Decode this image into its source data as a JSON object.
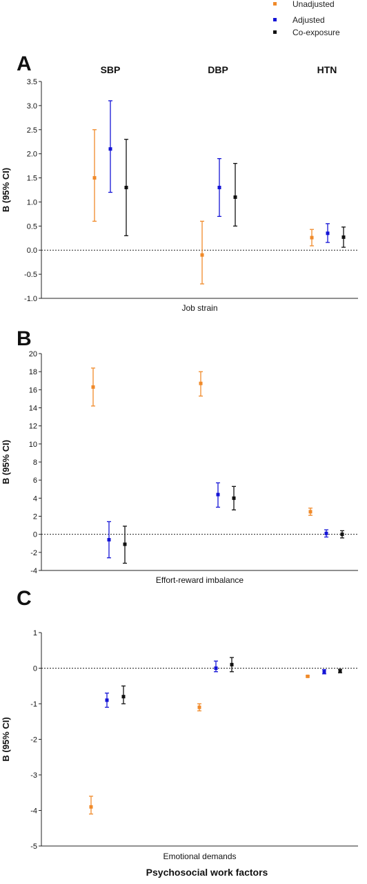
{
  "legend": [
    {
      "name": "Unadjusted",
      "color": "#f08a2a"
    },
    {
      "name": "Adjusted",
      "color": "#1414d6"
    },
    {
      "name": "Co-exposure",
      "color": "#111111"
    }
  ],
  "footer_label": "Psychosocial work factors",
  "chart_data": [
    {
      "type": "scatter",
      "panel": "A",
      "column_labels": [
        "SBP",
        "DBP",
        "HTN"
      ],
      "xlabel": "Job strain",
      "ylabel": "B (95% CI)",
      "ylim": [
        -1.0,
        3.5
      ],
      "yticks": [
        "-1.0",
        "-0.5",
        "0.0",
        "0.5",
        "1.0",
        "1.5",
        "2.0",
        "2.5",
        "3.0",
        "3.5"
      ],
      "reference_line": 0,
      "series": [
        {
          "name": "Unadjusted",
          "values": [
            1.5,
            -0.1,
            0.26
          ],
          "lower": [
            0.6,
            -0.7,
            0.09
          ],
          "upper": [
            2.5,
            0.6,
            0.43
          ]
        },
        {
          "name": "Adjusted",
          "values": [
            2.1,
            1.3,
            0.35
          ],
          "lower": [
            1.2,
            0.7,
            0.16
          ],
          "upper": [
            3.1,
            1.9,
            0.55
          ]
        },
        {
          "name": "Co-exposure",
          "values": [
            1.3,
            1.1,
            0.27
          ],
          "lower": [
            0.3,
            0.5,
            0.06
          ],
          "upper": [
            2.3,
            1.8,
            0.48
          ]
        }
      ]
    },
    {
      "type": "scatter",
      "panel": "B",
      "column_labels": [],
      "xlabel": "Effort-reward imbalance",
      "ylabel": "B (95% CI)",
      "ylim": [
        -4,
        20
      ],
      "yticks": [
        "-4",
        "-2",
        "0",
        "2",
        "4",
        "6",
        "8",
        "10",
        "12",
        "14",
        "16",
        "18",
        "20"
      ],
      "reference_line": 0,
      "series": [
        {
          "name": "Unadjusted",
          "values": [
            16.3,
            16.7,
            2.5
          ],
          "lower": [
            14.2,
            15.3,
            2.1
          ],
          "upper": [
            18.4,
            18.0,
            2.9
          ]
        },
        {
          "name": "Adjusted",
          "values": [
            -0.6,
            4.4,
            0.1
          ],
          "lower": [
            -2.6,
            3.0,
            -0.3
          ],
          "upper": [
            1.4,
            5.7,
            0.5
          ]
        },
        {
          "name": "Co-exposure",
          "values": [
            -1.1,
            4.0,
            0.0
          ],
          "lower": [
            -3.2,
            2.7,
            -0.4
          ],
          "upper": [
            0.9,
            5.3,
            0.4
          ]
        }
      ]
    },
    {
      "type": "scatter",
      "panel": "C",
      "column_labels": [],
      "xlabel": "Emotional demands",
      "ylabel": "B (95% CI)",
      "ylim": [
        -5,
        1
      ],
      "yticks": [
        "-5",
        "-4",
        "-3",
        "-2",
        "-1",
        "0",
        "1"
      ],
      "reference_line": 0,
      "series": [
        {
          "name": "Unadjusted",
          "values": [
            -3.9,
            -1.1,
            -0.23
          ],
          "lower": [
            -4.1,
            -1.2,
            -0.25
          ],
          "upper": [
            -3.6,
            -1.0,
            -0.21
          ]
        },
        {
          "name": "Adjusted",
          "values": [
            -0.9,
            0.0,
            -0.1
          ],
          "lower": [
            -1.1,
            -0.1,
            -0.16
          ],
          "upper": [
            -0.7,
            0.2,
            -0.04
          ]
        },
        {
          "name": "Co-exposure",
          "values": [
            -0.8,
            0.1,
            -0.08
          ],
          "lower": [
            -1.0,
            -0.1,
            -0.13
          ],
          "upper": [
            -0.5,
            0.3,
            -0.03
          ]
        }
      ]
    }
  ]
}
